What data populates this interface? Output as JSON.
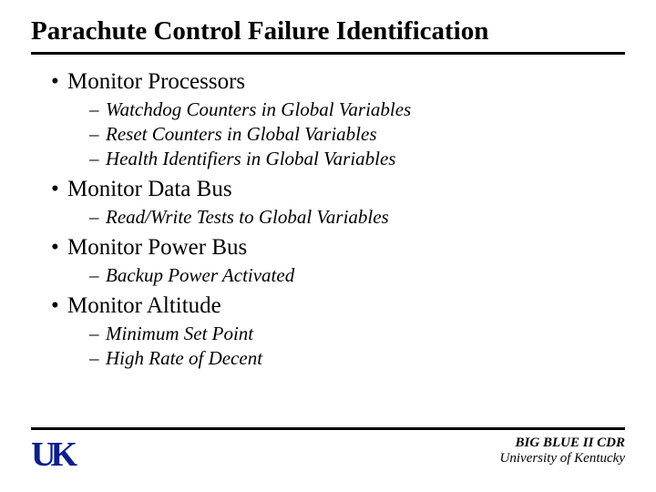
{
  "title": "Parachute Control Failure Identification",
  "bullets": [
    {
      "text": "Monitor Processors",
      "sub": [
        "Watchdog Counters in Global Variables",
        "Reset Counters in Global Variables",
        "Health Identifiers in Global Variables"
      ]
    },
    {
      "text": "Monitor Data Bus",
      "sub": [
        "Read/Write Tests to Global Variables"
      ]
    },
    {
      "text": "Monitor Power Bus",
      "sub": [
        "Backup Power Activated"
      ]
    },
    {
      "text": "Monitor Altitude",
      "sub": [
        "Minimum Set Point",
        "High Rate of Decent"
      ]
    }
  ],
  "logo": {
    "left": "U",
    "right": "K"
  },
  "footer": {
    "line1": "BIG BLUE II CDR",
    "line2": "University of Kentucky"
  },
  "colors": {
    "text": "#000000",
    "rule": "#000000",
    "logo": "#0a1f8f",
    "background": "#ffffff"
  },
  "typography": {
    "title_fontsize": 29,
    "lvl1_fontsize": 25,
    "lvl2_fontsize": 21,
    "footer_fontsize": 15,
    "family": "Times New Roman"
  }
}
